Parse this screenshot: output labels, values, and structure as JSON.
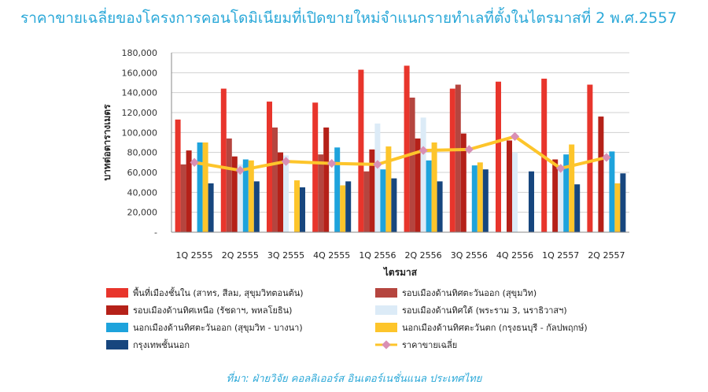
{
  "chart_data": {
    "type": "bar",
    "title": "ราคาขายเฉลี่ยของโครงการคอนโดมิเนียมที่เปิดขายใหม่จำแนกรายทำเลที่ตั้งในไตรมาสที่ 2 พ.ศ.2557",
    "xlabel": "ไตรมาส",
    "ylabel": "บาทต่อตารางเมตร",
    "source": "ที่มา: ฝ่ายวิจัย คอลลิเออร์ส อินเตอร์เนชั่นแนล ประเทศไทย",
    "ylim": [
      0,
      180000
    ],
    "yticks": [
      "-",
      "20,000",
      "40,000",
      "60,000",
      "80,000",
      "100,000",
      "120,000",
      "140,000",
      "160,000",
      "180,000"
    ],
    "ytick_values": [
      0,
      20000,
      40000,
      60000,
      80000,
      100000,
      120000,
      140000,
      160000,
      180000
    ],
    "grid": true,
    "legend_position": "bottom",
    "categories": [
      "1Q 2555",
      "2Q 2555",
      "3Q 2555",
      "4Q 2555",
      "1Q 2556",
      "2Q 2556",
      "3Q 2556",
      "4Q 2556",
      "1Q 2557",
      "2Q 2557"
    ],
    "series": [
      {
        "name": "พื้นที่เมืองชั้นใน (สาทร, สีลม, สุขุมวิทตอนต้น)",
        "type": "bar",
        "color": "#e8352c",
        "values": [
          113000,
          144000,
          131000,
          130000,
          163000,
          167000,
          144000,
          151000,
          154000,
          148000
        ]
      },
      {
        "name": "รอบเมืองด้านทิศตะวันออก (สุขุมวิท)",
        "type": "bar",
        "color": "#b5453f",
        "values": [
          68000,
          94000,
          105000,
          78000,
          61000,
          135000,
          148000,
          null,
          null,
          null
        ]
      },
      {
        "name": "รอบเมืองด้านทิศเหนือ (รัชดาฯ, พหลโยธิน)",
        "type": "bar",
        "color": "#b52119",
        "values": [
          82000,
          76000,
          80000,
          105000,
          83000,
          94000,
          99000,
          92000,
          73000,
          116000
        ]
      },
      {
        "name": "รอบเมืองด้านทิศใต้ (พระราม 3, นราธิวาสฯ)",
        "type": "bar",
        "color": "#dcebf7",
        "values": [
          null,
          68000,
          77000,
          null,
          109000,
          115000,
          null,
          80000,
          67000,
          null
        ]
      },
      {
        "name": "นอกเมืองด้านทิศตะวันออก (สุขุมวิท - บางนา)",
        "type": "bar",
        "color": "#1ea3dc",
        "values": [
          90000,
          73000,
          null,
          85000,
          63000,
          72000,
          67000,
          null,
          78000,
          81000
        ]
      },
      {
        "name": "นอกเมืองด้านทิศตะวันตก (กรุงธนบุรี - กัลปพฤกษ์)",
        "type": "bar",
        "color": "#fdc52b",
        "values": [
          90000,
          72000,
          52000,
          47000,
          86000,
          90000,
          70000,
          null,
          88000,
          49000
        ]
      },
      {
        "name": "กรุงเทพชั้นนอก",
        "type": "bar",
        "color": "#17467e",
        "values": [
          49000,
          51000,
          45000,
          51000,
          54000,
          51000,
          63000,
          61000,
          48000,
          59000
        ]
      },
      {
        "name": "ราคาขายเฉลี่ย",
        "type": "line",
        "color": "#fdc52b",
        "marker_color": "#d98fb4",
        "values": [
          70000,
          62000,
          71000,
          69000,
          68000,
          82000,
          83000,
          96000,
          64000,
          75000
        ]
      }
    ]
  }
}
